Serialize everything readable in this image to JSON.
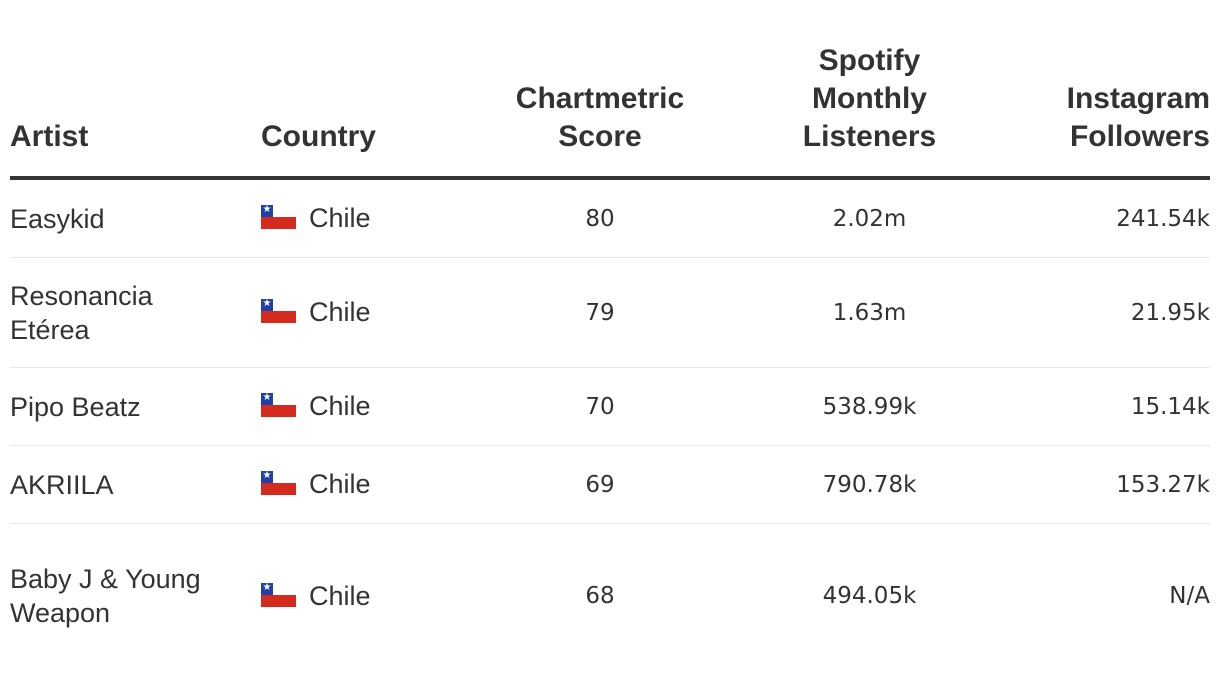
{
  "columns": {
    "artist": "Artist",
    "country": "Country",
    "score": [
      "Chartmetric",
      "Score"
    ],
    "spotify": [
      "Spotify",
      "Monthly",
      "Listeners"
    ],
    "instagram": [
      "Instagram",
      "Followers"
    ]
  },
  "rows": [
    {
      "artist": "Easykid",
      "country": "Chile",
      "flag_icon": "chile-flag-icon",
      "score": "80",
      "spotify": "2.02m",
      "instagram": "241.54k"
    },
    {
      "artist": "Resonancia Etérea",
      "country": "Chile",
      "flag_icon": "chile-flag-icon",
      "score": "79",
      "spotify": "1.63m",
      "instagram": "21.95k"
    },
    {
      "artist": "Pipo Beatz",
      "country": "Chile",
      "flag_icon": "chile-flag-icon",
      "score": "70",
      "spotify": "538.99k",
      "instagram": "15.14k"
    },
    {
      "artist": "AKRIILA",
      "country": "Chile",
      "flag_icon": "chile-flag-icon",
      "score": "69",
      "spotify": "790.78k",
      "instagram": "153.27k"
    },
    {
      "artist": "Baby J & Young Weapon",
      "country": "Chile",
      "flag_icon": "chile-flag-icon",
      "score": "68",
      "spotify": "494.05k",
      "instagram": "N/A"
    }
  ],
  "colors": {
    "text": "#333333",
    "header_rule": "#333333",
    "row_divider": "#e6e6e6",
    "flag_blue": "#1e40a8",
    "flag_red": "#d52b1e",
    "flag_white": "#ffffff"
  }
}
